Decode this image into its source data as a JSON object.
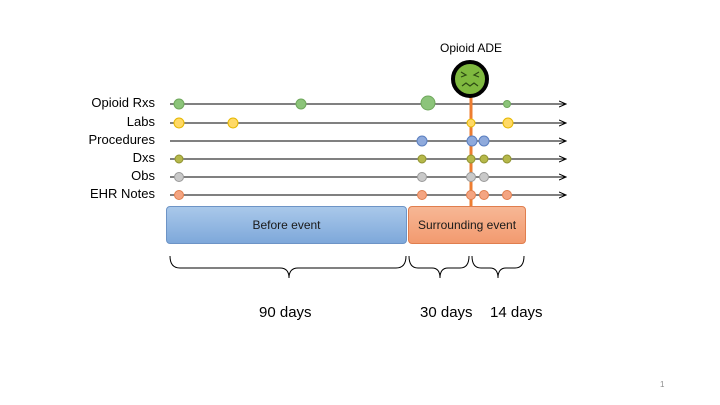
{
  "event": {
    "label": "Opioid ADE",
    "icon": "sick-face-icon"
  },
  "rows": [
    {
      "label": "Opioid Rxs"
    },
    {
      "label": "Labs"
    },
    {
      "label": "Procedures"
    },
    {
      "label": "Dxs"
    },
    {
      "label": "Obs"
    },
    {
      "label": "EHR Notes"
    }
  ],
  "periods": {
    "before": "Before event",
    "surrounding": "Surrounding event"
  },
  "durations": {
    "before": "90 days",
    "around": "30 days",
    "after": "14 days"
  },
  "colors": {
    "opioid_rxs": "#8cc47a",
    "labs": "#ffd966",
    "procedures": "#8faadc",
    "dxs": "#b5b84a",
    "obs": "#c0c0c0",
    "ehr_notes": "#f4a582",
    "event_line": "#ed7d31",
    "event_face": "#7fb93f"
  },
  "page_number": "1"
}
